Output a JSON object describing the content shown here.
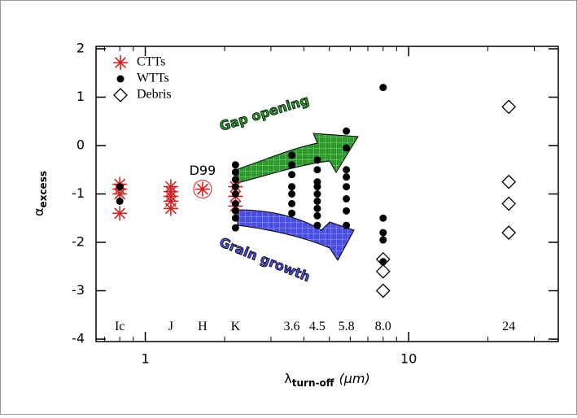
{
  "chart_data": {
    "type": "scatter",
    "xlabel": {
      "main": "λ",
      "sub": "turn-off",
      "unit": "(μm)"
    },
    "ylabel": {
      "main": "α",
      "sub": "excess"
    },
    "xlog": true,
    "xlim": [
      0.65,
      37
    ],
    "ylim": [
      -4.05,
      2.05
    ],
    "xticks": [
      1,
      10
    ],
    "xminor_ticks": [
      0.7,
      0.8,
      0.9,
      2,
      3,
      4,
      5,
      6,
      7,
      8,
      9,
      20,
      30
    ],
    "yticks": [
      -4,
      -3,
      -2,
      -1,
      0,
      1,
      2
    ],
    "legend": "upper left",
    "series": [
      {
        "name": "CTTs",
        "color": "#d42020",
        "marker": "asterisk",
        "x": [
          0.8,
          0.8,
          0.8,
          0.8,
          1.25,
          1.25,
          1.25,
          1.25,
          1.25,
          1.65,
          2.2,
          2.2,
          2.2
        ],
        "values": [
          -0.8,
          -0.9,
          -1.0,
          -1.4,
          -0.85,
          -0.95,
          -1.05,
          -1.15,
          -1.3,
          -0.9,
          -0.85,
          -1.05,
          -1.25
        ]
      },
      {
        "name": "WTTs",
        "color": "#000000",
        "marker": "dot",
        "x": [
          0.8,
          0.8,
          2.2,
          2.2,
          2.2,
          2.2,
          2.2,
          2.2,
          2.2,
          2.2,
          2.2,
          3.6,
          3.6,
          3.6,
          3.6,
          3.6,
          3.6,
          3.6,
          4.5,
          4.5,
          4.5,
          4.5,
          4.5,
          4.5,
          4.5,
          4.5,
          4.5,
          5.8,
          5.8,
          5.8,
          5.8,
          5.8,
          5.8,
          5.8,
          5.8,
          8.0,
          8.0,
          8.0,
          8.0,
          8.0
        ],
        "values": [
          -0.85,
          -1.15,
          -0.4,
          -0.55,
          -0.7,
          -0.85,
          -1.0,
          -1.2,
          -1.35,
          -1.5,
          -1.7,
          -0.2,
          -0.4,
          -0.6,
          -0.85,
          -1.0,
          -1.2,
          -1.4,
          -0.3,
          -0.5,
          -0.75,
          -0.85,
          -1.0,
          -1.15,
          -1.3,
          -1.45,
          -1.65,
          0.3,
          -0.05,
          -0.5,
          -0.65,
          -0.85,
          -1.1,
          -1.35,
          -1.65,
          1.2,
          -1.5,
          -1.8,
          -1.95,
          -2.4
        ]
      },
      {
        "name": "Debris",
        "color": "#000000",
        "marker": "diamond",
        "x": [
          8.0,
          8.0,
          8.0,
          24,
          24,
          24,
          24
        ],
        "values": [
          -2.35,
          -2.6,
          -3.0,
          0.8,
          -0.75,
          -1.2,
          -1.8
        ]
      }
    ],
    "band_labels": [
      "Ic",
      "J",
      "H",
      "K",
      "3.6",
      "4.5",
      "5.8",
      "8.0",
      "24"
    ],
    "band_wavelengths": [
      0.8,
      1.25,
      1.65,
      2.2,
      3.6,
      4.5,
      5.8,
      8.0,
      24
    ],
    "annotations": {
      "point": "D99",
      "gap": "Gap opening",
      "grain": "Grain growth"
    }
  }
}
